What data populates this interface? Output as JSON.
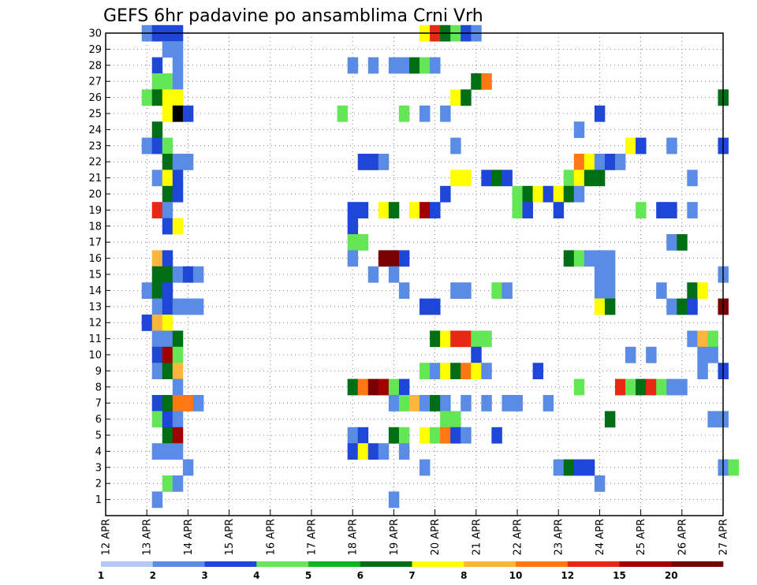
{
  "chart_data": {
    "type": "heatmap",
    "title": "GEFS 6hr padavine po ansamblima Crni Vrh",
    "xlabel": "",
    "ylabel": "",
    "x_ticks": [
      "12 APR",
      "13 APR",
      "14 APR",
      "15 APR",
      "16 APR",
      "17 APR",
      "18 APR",
      "19 APR",
      "20 APR",
      "21 APR",
      "22 APR",
      "23 APR",
      "24 APR",
      "25 APR",
      "26 APR",
      "27 APR"
    ],
    "y_ticks": [
      "1",
      "2",
      "3",
      "4",
      "5",
      "6",
      "7",
      "8",
      "9",
      "10",
      "11",
      "12",
      "13",
      "14",
      "15",
      "16",
      "17",
      "18",
      "19",
      "20",
      "21",
      "22",
      "23",
      "24",
      "25",
      "26",
      "27",
      "28",
      "29",
      "30"
    ],
    "ylim": [
      0,
      30
    ],
    "x_range": [
      "12 APR",
      "27 APR"
    ],
    "grid": true,
    "colorbar": {
      "labels": [
        "1",
        "2",
        "3",
        "4",
        "5",
        "6",
        "7",
        "8",
        "10",
        "12",
        "15",
        "20"
      ],
      "colors": [
        "#b4c8f5",
        "#5a8ce6",
        "#1e46d7",
        "#64e656",
        "#14b41e",
        "#006e14",
        "#ffff00",
        "#ffb43c",
        "#ff7814",
        "#e62814",
        "#a00000",
        "#780000"
      ]
    },
    "cells": [
      [
        30,
        13.0,
        1
      ],
      [
        30,
        13.25,
        2
      ],
      [
        30,
        13.5,
        2
      ],
      [
        30,
        13.75,
        2
      ],
      [
        30,
        19.75,
        6
      ],
      [
        30,
        20.0,
        9
      ],
      [
        30,
        20.25,
        5
      ],
      [
        30,
        20.5,
        3
      ],
      [
        30,
        20.75,
        2
      ],
      [
        30,
        21.0,
        1
      ],
      [
        29,
        13.5,
        1
      ],
      [
        29,
        13.75,
        1
      ],
      [
        28,
        13.25,
        2
      ],
      [
        28,
        13.75,
        1
      ],
      [
        28,
        18.0,
        1
      ],
      [
        28,
        18.5,
        1
      ],
      [
        28,
        19.0,
        1
      ],
      [
        28,
        19.25,
        1
      ],
      [
        28,
        19.5,
        5
      ],
      [
        28,
        19.75,
        3
      ],
      [
        28,
        20.0,
        1
      ],
      [
        27,
        13.25,
        3
      ],
      [
        27,
        13.5,
        3
      ],
      [
        27,
        13.75,
        1
      ],
      [
        27,
        21.0,
        5
      ],
      [
        27,
        21.25,
        8
      ],
      [
        26,
        13.0,
        3
      ],
      [
        26,
        13.25,
        5
      ],
      [
        26,
        13.5,
        6
      ],
      [
        26,
        13.75,
        6
      ],
      [
        26,
        20.5,
        6
      ],
      [
        26,
        20.75,
        5
      ],
      [
        26,
        27.0,
        5
      ],
      [
        25,
        13.5,
        6
      ],
      [
        25,
        13.75,
        12
      ],
      [
        25,
        14.0,
        2
      ],
      [
        25,
        17.75,
        3
      ],
      [
        25,
        19.25,
        3
      ],
      [
        25,
        19.75,
        1
      ],
      [
        25,
        20.25,
        1
      ],
      [
        25,
        24.0,
        2
      ],
      [
        24,
        13.25,
        5
      ],
      [
        24,
        23.5,
        1
      ],
      [
        23,
        13.0,
        1
      ],
      [
        23,
        13.25,
        2
      ],
      [
        23,
        13.5,
        3
      ],
      [
        23,
        20.5,
        1
      ],
      [
        23,
        24.75,
        6
      ],
      [
        23,
        25.0,
        2
      ],
      [
        23,
        25.75,
        1
      ],
      [
        23,
        27.0,
        2
      ],
      [
        22,
        13.5,
        5
      ],
      [
        22,
        13.75,
        1
      ],
      [
        22,
        14.0,
        1
      ],
      [
        22,
        18.25,
        2
      ],
      [
        22,
        18.5,
        2
      ],
      [
        22,
        18.75,
        1
      ],
      [
        22,
        23.5,
        8
      ],
      [
        22,
        23.75,
        6
      ],
      [
        22,
        24.0,
        1
      ],
      [
        22,
        24.25,
        2
      ],
      [
        22,
        24.5,
        1
      ],
      [
        21,
        13.25,
        1
      ],
      [
        21,
        13.5,
        6
      ],
      [
        21,
        13.75,
        2
      ],
      [
        21,
        20.5,
        6
      ],
      [
        21,
        20.75,
        6
      ],
      [
        21,
        21.25,
        2
      ],
      [
        21,
        21.5,
        5
      ],
      [
        21,
        21.75,
        2
      ],
      [
        21,
        23.25,
        3
      ],
      [
        21,
        23.5,
        6
      ],
      [
        21,
        23.75,
        5
      ],
      [
        21,
        24.0,
        5
      ],
      [
        21,
        26.25,
        1
      ],
      [
        20,
        13.5,
        5
      ],
      [
        20,
        13.75,
        2
      ],
      [
        20,
        20.25,
        2
      ],
      [
        20,
        22.0,
        3
      ],
      [
        20,
        22.25,
        5
      ],
      [
        20,
        22.5,
        6
      ],
      [
        20,
        22.75,
        2
      ],
      [
        20,
        23.0,
        6
      ],
      [
        20,
        23.25,
        5
      ],
      [
        20,
        23.5,
        1
      ],
      [
        19,
        13.25,
        9
      ],
      [
        19,
        13.5,
        1
      ],
      [
        19,
        18.0,
        2
      ],
      [
        19,
        18.25,
        2
      ],
      [
        19,
        18.75,
        6
      ],
      [
        19,
        19.0,
        5
      ],
      [
        19,
        19.5,
        6
      ],
      [
        19,
        19.75,
        10
      ],
      [
        19,
        20.0,
        2
      ],
      [
        19,
        22.0,
        3
      ],
      [
        19,
        22.25,
        2
      ],
      [
        19,
        23.0,
        2
      ],
      [
        19,
        25.0,
        3
      ],
      [
        19,
        25.5,
        2
      ],
      [
        19,
        25.75,
        2
      ],
      [
        19,
        26.25,
        1
      ],
      [
        18,
        13.5,
        2
      ],
      [
        18,
        13.75,
        6
      ],
      [
        18,
        18.0,
        2
      ],
      [
        17,
        18.0,
        3
      ],
      [
        17,
        18.25,
        3
      ],
      [
        17,
        25.75,
        1
      ],
      [
        17,
        26.0,
        5
      ],
      [
        16,
        13.25,
        7
      ],
      [
        16,
        13.5,
        2
      ],
      [
        16,
        18.0,
        1
      ],
      [
        16,
        18.75,
        11
      ],
      [
        16,
        19.0,
        11
      ],
      [
        16,
        19.25,
        2
      ],
      [
        16,
        23.25,
        5
      ],
      [
        16,
        23.5,
        3
      ],
      [
        16,
        23.75,
        1
      ],
      [
        16,
        24.0,
        1
      ],
      [
        16,
        24.25,
        1
      ],
      [
        15,
        13.25,
        5
      ],
      [
        15,
        13.5,
        5
      ],
      [
        15,
        13.75,
        1
      ],
      [
        15,
        14.0,
        2
      ],
      [
        15,
        14.25,
        1
      ],
      [
        15,
        18.5,
        1
      ],
      [
        15,
        19.0,
        1
      ],
      [
        15,
        24.0,
        1
      ],
      [
        15,
        24.25,
        1
      ],
      [
        15,
        27.0,
        1
      ],
      [
        14,
        13.0,
        1
      ],
      [
        14,
        13.25,
        5
      ],
      [
        14,
        13.5,
        2
      ],
      [
        14,
        19.25,
        1
      ],
      [
        14,
        20.5,
        1
      ],
      [
        14,
        20.75,
        1
      ],
      [
        14,
        21.5,
        3
      ],
      [
        14,
        21.75,
        1
      ],
      [
        14,
        24.0,
        1
      ],
      [
        14,
        24.25,
        1
      ],
      [
        14,
        25.5,
        1
      ],
      [
        14,
        26.25,
        5
      ],
      [
        14,
        26.5,
        6
      ],
      [
        13,
        13.25,
        1
      ],
      [
        13,
        13.5,
        2
      ],
      [
        13,
        13.75,
        1
      ],
      [
        13,
        14.0,
        1
      ],
      [
        13,
        14.25,
        1
      ],
      [
        13,
        19.75,
        2
      ],
      [
        13,
        20.0,
        2
      ],
      [
        13,
        24.0,
        6
      ],
      [
        13,
        24.25,
        5
      ],
      [
        13,
        25.75,
        1
      ],
      [
        13,
        26.0,
        5
      ],
      [
        13,
        26.25,
        2
      ],
      [
        13,
        27.0,
        11
      ],
      [
        12,
        13.0,
        2
      ],
      [
        12,
        13.25,
        7
      ],
      [
        12,
        13.5,
        6
      ],
      [
        11,
        13.25,
        1
      ],
      [
        11,
        13.5,
        1
      ],
      [
        11,
        13.75,
        5
      ],
      [
        11,
        20.0,
        5
      ],
      [
        11,
        20.25,
        6
      ],
      [
        11,
        20.5,
        9
      ],
      [
        11,
        20.75,
        9
      ],
      [
        11,
        21.0,
        3
      ],
      [
        11,
        21.25,
        3
      ],
      [
        11,
        26.25,
        1
      ],
      [
        11,
        26.5,
        7
      ],
      [
        11,
        26.75,
        3
      ],
      [
        10,
        13.25,
        2
      ],
      [
        10,
        13.5,
        10
      ],
      [
        10,
        13.75,
        3
      ],
      [
        10,
        21.0,
        2
      ],
      [
        10,
        24.75,
        1
      ],
      [
        10,
        25.25,
        1
      ],
      [
        10,
        26.5,
        1
      ],
      [
        10,
        26.75,
        1
      ],
      [
        9,
        13.25,
        1
      ],
      [
        9,
        13.5,
        5
      ],
      [
        9,
        13.75,
        7
      ],
      [
        9,
        19.75,
        3
      ],
      [
        9,
        20.0,
        1
      ],
      [
        9,
        20.25,
        6
      ],
      [
        9,
        20.5,
        5
      ],
      [
        9,
        20.75,
        8
      ],
      [
        9,
        21.0,
        6
      ],
      [
        9,
        21.25,
        1
      ],
      [
        9,
        22.5,
        2
      ],
      [
        9,
        26.5,
        1
      ],
      [
        9,
        27.0,
        2
      ],
      [
        8,
        13.75,
        1
      ],
      [
        8,
        18.0,
        5
      ],
      [
        8,
        18.25,
        8
      ],
      [
        8,
        18.5,
        11
      ],
      [
        8,
        18.75,
        10
      ],
      [
        8,
        19.0,
        3
      ],
      [
        8,
        19.25,
        2
      ],
      [
        8,
        23.5,
        3
      ],
      [
        8,
        24.5,
        9
      ],
      [
        8,
        24.75,
        3
      ],
      [
        8,
        25.0,
        5
      ],
      [
        8,
        25.25,
        9
      ],
      [
        8,
        25.5,
        3
      ],
      [
        8,
        25.75,
        1
      ],
      [
        8,
        26.0,
        1
      ],
      [
        7,
        13.25,
        2
      ],
      [
        7,
        13.5,
        5
      ],
      [
        7,
        13.75,
        8
      ],
      [
        7,
        14.0,
        8
      ],
      [
        7,
        14.25,
        1
      ],
      [
        7,
        19.0,
        1
      ],
      [
        7,
        19.25,
        3
      ],
      [
        7,
        19.5,
        7
      ],
      [
        7,
        19.75,
        1
      ],
      [
        7,
        20.0,
        5
      ],
      [
        7,
        20.25,
        1
      ],
      [
        7,
        20.75,
        1
      ],
      [
        7,
        21.25,
        1
      ],
      [
        7,
        21.75,
        1
      ],
      [
        7,
        22.0,
        1
      ],
      [
        7,
        22.75,
        1
      ],
      [
        6,
        13.25,
        3
      ],
      [
        6,
        13.5,
        2
      ],
      [
        6,
        13.75,
        1
      ],
      [
        6,
        20.25,
        3
      ],
      [
        6,
        20.5,
        3
      ],
      [
        6,
        24.25,
        5
      ],
      [
        6,
        26.75,
        1
      ],
      [
        6,
        27.0,
        1
      ],
      [
        5,
        13.5,
        5
      ],
      [
        5,
        13.75,
        10
      ],
      [
        5,
        18.0,
        1
      ],
      [
        5,
        18.25,
        2
      ],
      [
        5,
        19.0,
        5
      ],
      [
        5,
        19.25,
        3
      ],
      [
        5,
        19.75,
        6
      ],
      [
        5,
        20.0,
        3
      ],
      [
        5,
        20.25,
        8
      ],
      [
        5,
        20.5,
        2
      ],
      [
        5,
        20.75,
        1
      ],
      [
        5,
        21.5,
        2
      ],
      [
        4,
        13.25,
        1
      ],
      [
        4,
        13.5,
        1
      ],
      [
        4,
        13.75,
        1
      ],
      [
        4,
        18.0,
        2
      ],
      [
        4,
        18.25,
        6
      ],
      [
        4,
        18.5,
        2
      ],
      [
        4,
        18.75,
        1
      ],
      [
        4,
        19.25,
        1
      ],
      [
        3,
        14.0,
        1
      ],
      [
        3,
        19.75,
        1
      ],
      [
        3,
        23.0,
        1
      ],
      [
        3,
        23.25,
        5
      ],
      [
        3,
        23.5,
        2
      ],
      [
        3,
        23.75,
        2
      ],
      [
        3,
        27.0,
        1
      ],
      [
        3,
        27.25,
        3
      ],
      [
        2,
        13.5,
        3
      ],
      [
        2,
        13.75,
        1
      ],
      [
        2,
        24.0,
        1
      ],
      [
        1,
        13.25,
        1
      ],
      [
        1,
        19.0,
        1
      ]
    ]
  }
}
